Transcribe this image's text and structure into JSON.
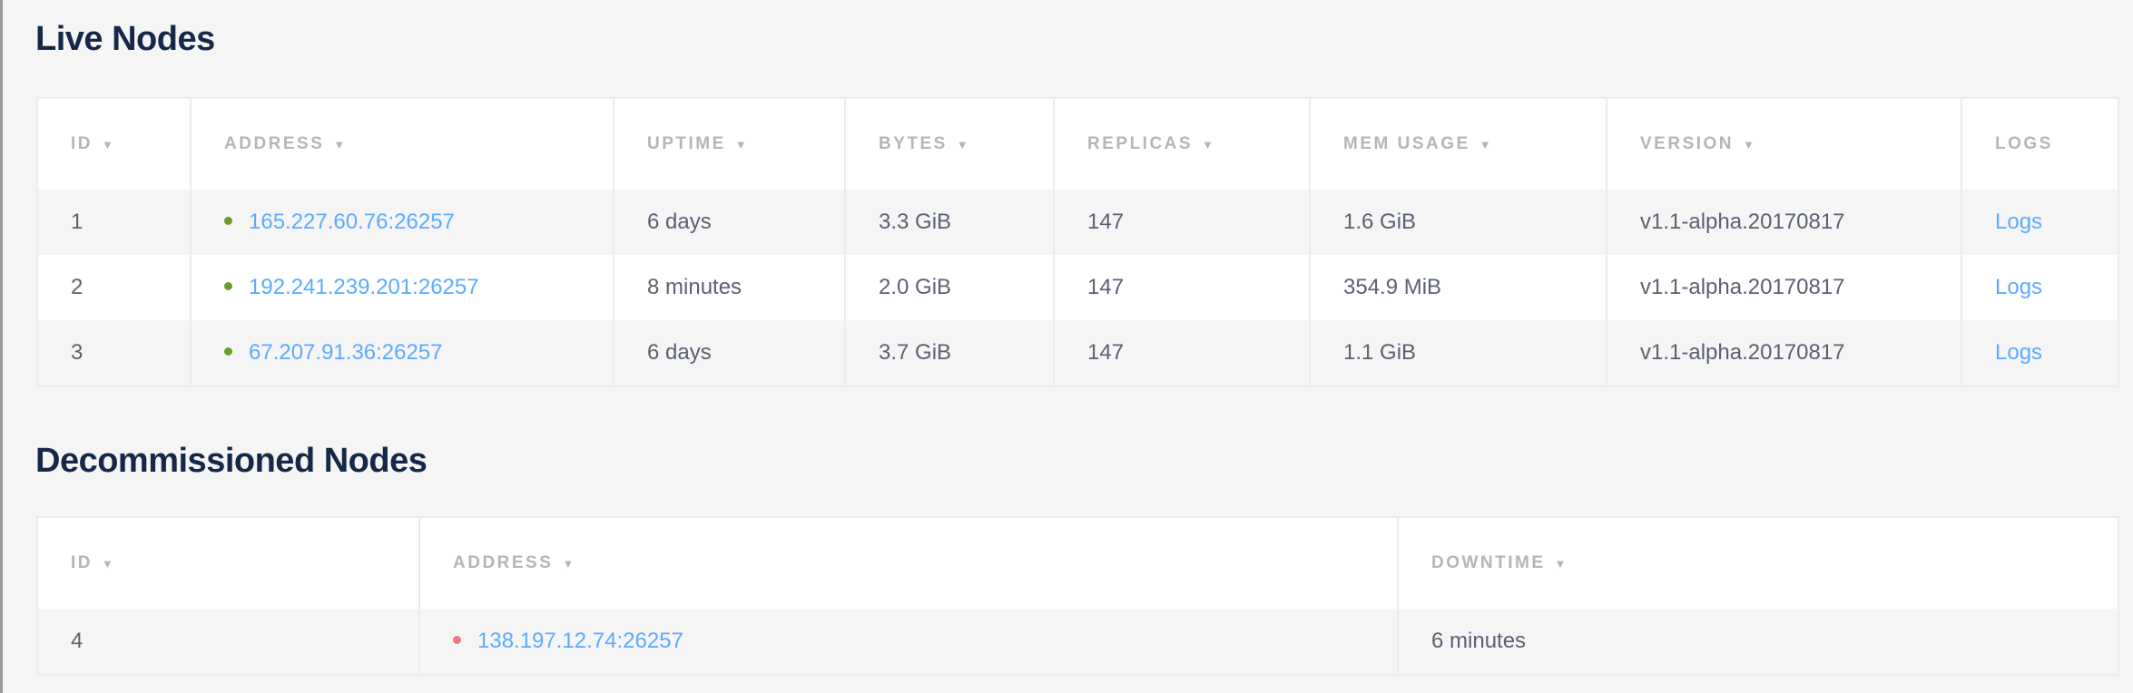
{
  "colors": {
    "live": "#6a9e2b",
    "decommissioned": "#e57d82",
    "link": "#5aabff"
  },
  "live": {
    "title": "Live Nodes",
    "headers": [
      {
        "label": "ID",
        "sortable": true
      },
      {
        "label": "ADDRESS",
        "sortable": true
      },
      {
        "label": "UPTIME",
        "sortable": true
      },
      {
        "label": "BYTES",
        "sortable": true
      },
      {
        "label": "REPLICAS",
        "sortable": true
      },
      {
        "label": "MEM USAGE",
        "sortable": true
      },
      {
        "label": "VERSION",
        "sortable": true
      },
      {
        "label": "LOGS",
        "sortable": false
      }
    ],
    "sort_icon": "▼",
    "rows": [
      {
        "id": "1",
        "address": "165.227.60.76:26257",
        "uptime": "6 days",
        "bytes": "3.3 GiB",
        "replicas": "147",
        "mem": "1.6 GiB",
        "version": "v1.1-alpha.20170817",
        "logs": "Logs"
      },
      {
        "id": "2",
        "address": "192.241.239.201:26257",
        "uptime": "8 minutes",
        "bytes": "2.0 GiB",
        "replicas": "147",
        "mem": "354.9 MiB",
        "version": "v1.1-alpha.20170817",
        "logs": "Logs"
      },
      {
        "id": "3",
        "address": "67.207.91.36:26257",
        "uptime": "6 days",
        "bytes": "3.7 GiB",
        "replicas": "147",
        "mem": "1.1 GiB",
        "version": "v1.1-alpha.20170817",
        "logs": "Logs"
      }
    ]
  },
  "decommissioned": {
    "title": "Decommissioned Nodes",
    "headers": [
      {
        "label": "ID"
      },
      {
        "label": "ADDRESS"
      },
      {
        "label": "DOWNTIME"
      }
    ],
    "rows": [
      {
        "id": "4",
        "address": "138.197.12.74:26257",
        "downtime": "6 minutes"
      }
    ]
  }
}
